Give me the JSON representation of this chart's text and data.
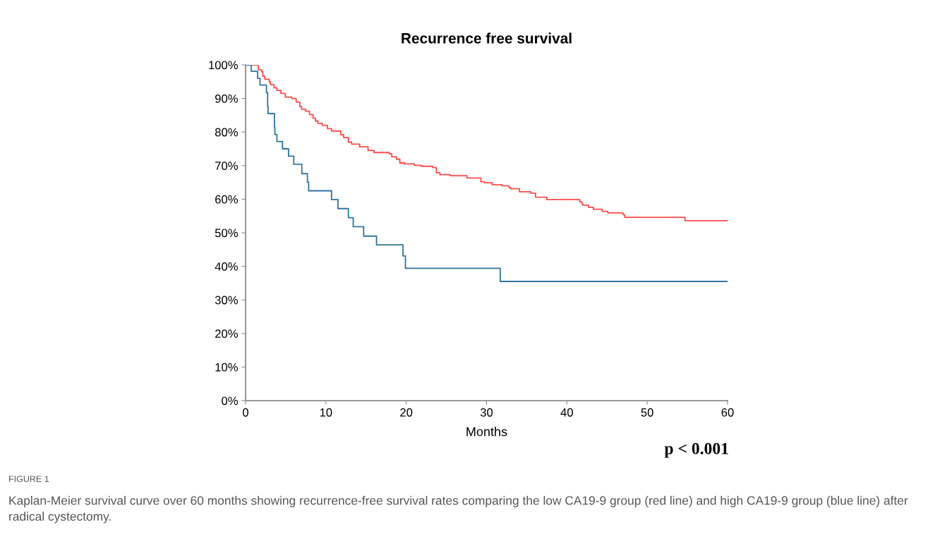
{
  "chart_data": {
    "type": "step",
    "title": "Recurrence free survival",
    "xlabel": "Months",
    "xlim": [
      0,
      60
    ],
    "xticks": [
      0,
      10,
      20,
      30,
      40,
      50,
      60
    ],
    "ylim": [
      0,
      100
    ],
    "yticks": [
      {
        "value": 0,
        "label": "0%"
      },
      {
        "value": 10,
        "label": "10%"
      },
      {
        "value": 20,
        "label": "20%"
      },
      {
        "value": 30,
        "label": "30%"
      },
      {
        "value": 40,
        "label": "40%"
      },
      {
        "value": 50,
        "label": "50%"
      },
      {
        "value": 60,
        "label": "60%"
      },
      {
        "value": 70,
        "label": "70%"
      },
      {
        "value": 80,
        "label": "80%"
      },
      {
        "value": 90,
        "label": "90%"
      },
      {
        "value": 100,
        "label": "100%"
      }
    ],
    "grid": false,
    "legend": false,
    "marker": "none",
    "line_style": "solid",
    "series": [
      {
        "color": "#ff4b4b",
        "x": [
          0,
          0.9,
          1.6,
          2.0,
          2.15,
          2.4,
          2.95,
          3.1,
          3.55,
          3.9,
          4.4,
          4.95,
          5.75,
          6.3,
          6.75,
          6.97,
          7.5,
          7.95,
          8.4,
          8.7,
          9.0,
          9.55,
          10.2,
          10.7,
          11.85,
          12.2,
          12.8,
          13.2,
          14.2,
          15.25,
          16.0,
          17.9,
          18.2,
          18.8,
          19.2,
          19.8,
          21.0,
          21.85,
          23.3,
          23.75,
          24.2,
          25.5,
          27.55,
          29.3,
          29.75,
          30.7,
          31.9,
          32.8,
          33.0,
          34.1,
          35.5,
          36.1,
          37.5,
          41.6,
          41.85,
          41.95,
          42.7,
          43.3,
          44.4,
          45.1,
          47.0,
          47.2,
          54.7,
          60
        ],
        "values": [
          100,
          100,
          98.5,
          98.0,
          96.6,
          95.7,
          95.0,
          94.1,
          93.2,
          92.4,
          91.5,
          90.4,
          90.0,
          88.9,
          87.6,
          86.8,
          86.2,
          85.2,
          84.1,
          83.3,
          82.6,
          82.0,
          81.0,
          80.3,
          79.2,
          78.4,
          77.0,
          76.4,
          75.6,
          74.5,
          73.9,
          73.5,
          72.6,
          71.9,
          70.8,
          70.5,
          70.1,
          69.8,
          69.4,
          67.9,
          67.3,
          67.0,
          66.3,
          65.2,
          64.9,
          64.3,
          64.0,
          63.4,
          63.1,
          62.2,
          61.8,
          60.6,
          59.9,
          59.2,
          58.7,
          58.2,
          57.6,
          57.0,
          56.4,
          55.9,
          55.4,
          54.6,
          53.6,
          53.6
        ]
      },
      {
        "color": "#2e75a0",
        "x": [
          0,
          0.7,
          1.5,
          1.8,
          2.6,
          2.75,
          2.8,
          3.6,
          3.65,
          3.9,
          4.6,
          5.35,
          6.0,
          7.0,
          7.7,
          7.85,
          10.7,
          11.5,
          12.8,
          13.4,
          14.7,
          16.3,
          19.6,
          19.9,
          31.7,
          60
        ],
        "values": [
          100,
          98.1,
          96.0,
          94.0,
          91.7,
          87.6,
          85.5,
          81.4,
          79.3,
          77.2,
          75.0,
          72.8,
          70.4,
          67.6,
          65.1,
          62.5,
          59.9,
          57.2,
          54.5,
          51.8,
          49.0,
          46.4,
          43.1,
          39.4,
          35.5,
          35.5
        ]
      }
    ],
    "annotations": [
      "p < 0.001",
      "FIGURE 1",
      "Kaplan-Meier survival curve over 60 months showing recurrence-free survival rates comparing the low CA19-9 group (red line) and high CA19-9 group (blue line) after radical cystectomy."
    ]
  }
}
